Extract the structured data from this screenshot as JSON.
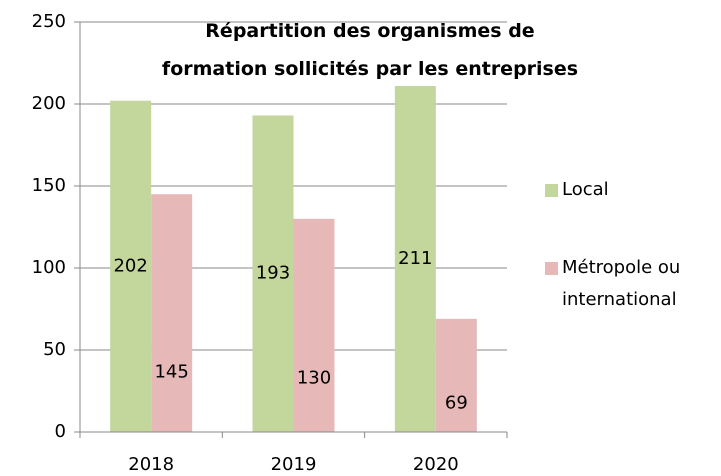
{
  "chart_data": {
    "type": "bar",
    "title": "Répartition des organismes de formation sollicités par les entreprises",
    "categories": [
      "2018",
      "2019",
      "2020"
    ],
    "series": [
      {
        "name": "Local",
        "color": "#c3d69b",
        "values": [
          202,
          193,
          211
        ]
      },
      {
        "name": "Métropole ou international",
        "color": "#e6b9b8",
        "values": [
          145,
          130,
          69
        ]
      }
    ],
    "ylim": [
      0,
      250
    ],
    "yticks": [
      0,
      50,
      100,
      150,
      200,
      250
    ],
    "grid": true,
    "legend": "right"
  }
}
